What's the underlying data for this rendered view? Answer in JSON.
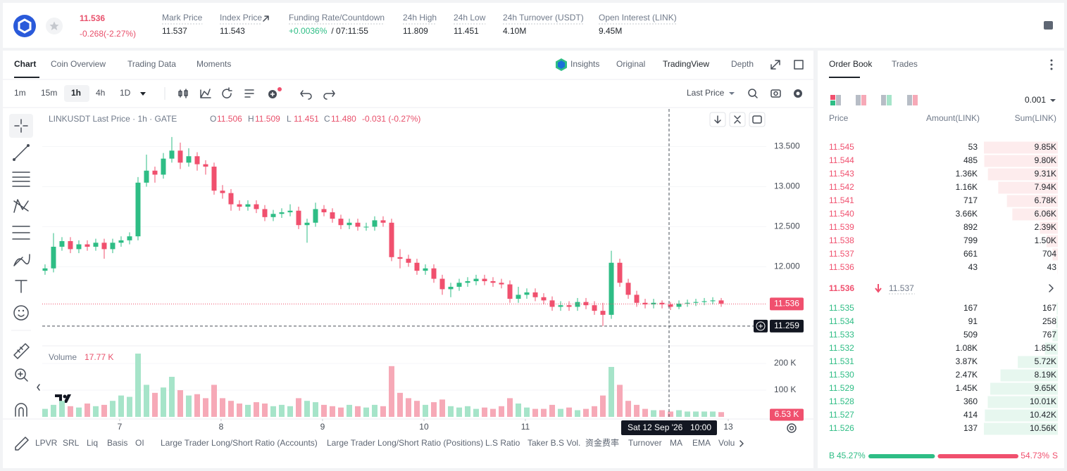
{
  "header": {
    "price": "11.536",
    "change": "-0.268(-2.27%)",
    "stats": [
      {
        "label": "Mark Price",
        "value": "11.537"
      },
      {
        "label": "Index Price",
        "value": "11.543"
      },
      {
        "label": "Funding Rate/Countdown",
        "value": "+0.0036%",
        "extra": "/ 07:11:55"
      },
      {
        "label": "24h High",
        "value": "11.809"
      },
      {
        "label": "24h Low",
        "value": "11.451"
      },
      {
        "label": "24h Turnover (USDT)",
        "value": "4.10M"
      },
      {
        "label": "Open Interest (LINK)",
        "value": "9.45M"
      }
    ]
  },
  "tabs": [
    "Chart",
    "Coin Overview",
    "Trading Data",
    "Moments"
  ],
  "views": [
    "Insights",
    "Original",
    "TradingView",
    "Depth"
  ],
  "intervals": [
    "1m",
    "15m",
    "1h",
    "4h",
    "1D"
  ],
  "price_type": "Last Price",
  "legend": {
    "symbol": "LINKUSDT Last Price · 1h · GATE",
    "items": [
      [
        "O",
        "11.506"
      ],
      [
        "H",
        "11.509"
      ],
      [
        "L",
        "11.451"
      ],
      [
        "C",
        "11.480"
      ]
    ],
    "change": "-0.031 (-0.27%)"
  },
  "chart_data": {
    "type": "candlestick",
    "open": [
      11.95,
      11.98,
      12.25,
      12.32,
      12.22,
      12.28,
      12.25,
      12.3,
      12.22,
      12.3,
      12.33,
      12.38,
      13.05,
      13.2,
      13.15,
      13.35,
      13.45,
      13.3,
      13.38,
      13.28,
      13.25,
      12.95,
      12.92,
      12.78,
      12.75,
      12.78,
      12.72,
      12.62,
      12.66,
      12.68,
      12.7,
      12.52,
      12.55,
      12.72,
      12.68,
      12.6,
      12.52,
      12.55,
      12.5,
      12.5,
      12.58,
      12.55,
      12.12,
      12.1,
      12.05,
      11.95,
      11.98,
      11.85,
      11.72,
      11.75,
      11.8,
      11.82,
      11.85,
      11.82,
      11.8,
      11.78,
      11.6,
      11.65,
      11.68,
      11.62,
      11.58,
      11.5,
      11.52,
      11.5,
      11.56,
      11.52,
      11.45,
      11.4,
      12.05,
      11.8,
      11.65,
      11.55,
      11.53,
      11.55,
      11.53,
      11.5,
      11.54,
      11.55,
      11.56,
      11.57,
      11.58
    ],
    "high": [
      12.03,
      12.42,
      12.37,
      12.37,
      12.33,
      12.33,
      12.35,
      12.35,
      12.35,
      12.38,
      12.43,
      13.12,
      13.4,
      13.25,
      13.42,
      13.62,
      13.55,
      13.48,
      13.43,
      13.33,
      13.3,
      13.02,
      12.97,
      12.83,
      12.83,
      12.83,
      12.77,
      12.71,
      12.73,
      12.78,
      12.75,
      12.6,
      12.8,
      12.77,
      12.73,
      12.65,
      12.6,
      12.6,
      12.55,
      12.63,
      12.63,
      12.6,
      12.22,
      12.15,
      12.1,
      12.03,
      12.03,
      11.9,
      11.8,
      11.85,
      11.87,
      11.9,
      11.9,
      11.87,
      11.85,
      11.83,
      11.75,
      11.73,
      11.73,
      11.67,
      11.63,
      11.57,
      11.57,
      11.61,
      11.61,
      11.57,
      11.55,
      12.2,
      12.1,
      11.85,
      11.7,
      11.6,
      11.6,
      11.58,
      11.56,
      11.58,
      11.59,
      11.6,
      11.61,
      11.62,
      11.61
    ],
    "low": [
      11.9,
      11.93,
      12.2,
      12.17,
      12.17,
      12.2,
      12.2,
      12.1,
      12.17,
      12.25,
      12.28,
      12.33,
      13.0,
      13.05,
      13.1,
      13.3,
      13.22,
      13.25,
      13.2,
      13.15,
      12.9,
      12.85,
      12.7,
      12.7,
      12.7,
      12.67,
      12.57,
      12.57,
      12.61,
      12.63,
      12.47,
      12.3,
      12.5,
      12.63,
      12.55,
      12.47,
      12.47,
      12.45,
      12.45,
      12.45,
      12.5,
      12.07,
      11.98,
      12.0,
      11.9,
      11.9,
      11.8,
      11.65,
      11.62,
      11.7,
      11.75,
      11.77,
      11.77,
      11.75,
      11.73,
      11.55,
      11.55,
      11.6,
      11.57,
      11.53,
      11.45,
      11.45,
      11.45,
      11.45,
      11.47,
      11.4,
      11.26,
      11.35,
      11.75,
      11.6,
      11.5,
      11.48,
      11.48,
      11.48,
      11.46,
      11.47,
      11.5,
      11.51,
      11.52,
      11.53,
      11.5
    ],
    "close": [
      11.98,
      12.25,
      12.32,
      12.22,
      12.28,
      12.25,
      12.3,
      12.22,
      12.3,
      12.33,
      12.38,
      13.05,
      13.2,
      13.15,
      13.35,
      13.45,
      13.3,
      13.38,
      13.28,
      13.25,
      12.95,
      12.92,
      12.78,
      12.75,
      12.78,
      12.72,
      12.62,
      12.66,
      12.68,
      12.7,
      12.52,
      12.55,
      12.72,
      12.68,
      12.6,
      12.52,
      12.55,
      12.5,
      12.5,
      12.58,
      12.55,
      12.12,
      12.1,
      12.05,
      11.95,
      11.98,
      11.85,
      11.72,
      11.75,
      11.8,
      11.82,
      11.85,
      11.82,
      11.8,
      11.78,
      11.6,
      11.65,
      11.68,
      11.62,
      11.58,
      11.5,
      11.52,
      11.5,
      11.56,
      11.52,
      11.45,
      11.4,
      12.05,
      11.8,
      11.65,
      11.55,
      11.53,
      11.55,
      11.53,
      11.5,
      11.54,
      11.55,
      11.56,
      11.57,
      11.58,
      11.54
    ],
    "up_color": "#2ebd85",
    "down_color": "#f0506e",
    "volume_up_color": "#a6e4c9",
    "volume_down_color": "#f6a9b7",
    "xlim": [
      -0.33,
      85.33
    ],
    "xticks": [
      {
        "value": 8.83,
        "label": "7"
      },
      {
        "value": 20.83,
        "label": "8"
      },
      {
        "value": 32.83,
        "label": "9"
      },
      {
        "value": 44.83,
        "label": "10"
      },
      {
        "value": 56.83,
        "label": "11"
      },
      {
        "value": 80.83,
        "label": "13"
      }
    ],
    "ylim": [
      11.03,
      13.97
    ],
    "yticks": [
      {
        "value": 13.5,
        "label": "13.500"
      },
      {
        "value": 13.0,
        "label": "13.000"
      },
      {
        "value": 12.5,
        "label": "12.500"
      },
      {
        "value": 12.0,
        "label": "12.000"
      }
    ],
    "last_price": 11.536,
    "crosshair": {
      "value": 11.259,
      "x": 73.83,
      "x_label": "Sat 12 Sep '26",
      "time": "10:00"
    },
    "volume": {
      "title": "Volume",
      "value_label": "17.77 K",
      "values": [
        30,
        45,
        60,
        40,
        35,
        50,
        40,
        45,
        60,
        80,
        75,
        237,
        120,
        90,
        110,
        150,
        100,
        80,
        85,
        70,
        120,
        70,
        60,
        50,
        45,
        55,
        50,
        40,
        45,
        40,
        70,
        60,
        55,
        45,
        40,
        35,
        45,
        40,
        35,
        45,
        40,
        190,
        90,
        70,
        60,
        45,
        55,
        65,
        40,
        35,
        40,
        30,
        35,
        30,
        40,
        70,
        50,
        35,
        30,
        30,
        45,
        30,
        35,
        25,
        30,
        40,
        80,
        187,
        120,
        60,
        45,
        30,
        25,
        25,
        20,
        25,
        20,
        20,
        20,
        20,
        17.77
      ],
      "ylim": [
        0,
        258
      ],
      "yticks": [
        {
          "value": 200,
          "label": "200 K"
        },
        {
          "value": 100,
          "label": "100 K"
        }
      ],
      "current": {
        "value": 6.53,
        "label": "6.53 K"
      }
    }
  },
  "indicators": [
    "LPVR",
    "SRL",
    "Liq",
    "Basis",
    "OI",
    "Large Trader Long/Short Ratio (Accounts)",
    "Large Trader Long/Short Ratio (Positions)",
    "L.S Ratio",
    "Taker B.S Vol.",
    "资金费率",
    "Turnover",
    "MA",
    "EMA",
    "Volu"
  ],
  "order_book": {
    "tabs": [
      "Order Book",
      "Trades"
    ],
    "precision": "0.001",
    "columns": [
      "Price",
      "Amount(LINK)",
      "Sum(LINK)"
    ],
    "asks": [
      {
        "price": "11.545",
        "amount": "53",
        "sum": {
          "value": 9850,
          "label": "9.85K"
        }
      },
      {
        "price": "11.544",
        "amount": "485",
        "sum": {
          "value": 9800,
          "label": "9.80K"
        }
      },
      {
        "price": "11.543",
        "amount": "1.36K",
        "sum": {
          "value": 9310,
          "label": "9.31K"
        }
      },
      {
        "price": "11.542",
        "amount": "1.16K",
        "sum": {
          "value": 7940,
          "label": "7.94K"
        }
      },
      {
        "price": "11.541",
        "amount": "717",
        "sum": {
          "value": 6780,
          "label": "6.78K"
        }
      },
      {
        "price": "11.540",
        "amount": "3.66K",
        "sum": {
          "value": 6060,
          "label": "6.06K"
        }
      },
      {
        "price": "11.539",
        "amount": "892",
        "sum": {
          "value": 2390,
          "label": "2.39K"
        }
      },
      {
        "price": "11.538",
        "amount": "799",
        "sum": {
          "value": 1500,
          "label": "1.50K"
        }
      },
      {
        "price": "11.537",
        "amount": "661",
        "sum": 704
      },
      {
        "price": "11.536",
        "amount": "43",
        "sum": 43
      }
    ],
    "last": "11.536",
    "mark": "11.537",
    "bids": [
      {
        "price": "11.535",
        "amount": "167",
        "sum": 167
      },
      {
        "price": "11.534",
        "amount": "91",
        "sum": 258
      },
      {
        "price": "11.533",
        "amount": "509",
        "sum": 767
      },
      {
        "price": "11.532",
        "amount": "1.08K",
        "sum": {
          "value": 1850,
          "label": "1.85K"
        }
      },
      {
        "price": "11.531",
        "amount": "3.87K",
        "sum": {
          "value": 5720,
          "label": "5.72K"
        }
      },
      {
        "price": "11.530",
        "amount": "2.47K",
        "sum": {
          "value": 8190,
          "label": "8.19K"
        }
      },
      {
        "price": "11.529",
        "amount": "1.45K",
        "sum": {
          "value": 9650,
          "label": "9.65K"
        }
      },
      {
        "price": "11.528",
        "amount": "360",
        "sum": {
          "value": 10010,
          "label": "10.01K"
        }
      },
      {
        "price": "11.527",
        "amount": "414",
        "sum": {
          "value": 10420,
          "label": "10.42K"
        }
      },
      {
        "price": "11.526",
        "amount": "137",
        "sum": {
          "value": 10560,
          "label": "10.56K"
        }
      }
    ],
    "ratio": {
      "b": "B",
      "buy": {
        "value": 45.27,
        "label": "45.27%"
      },
      "sell": {
        "value": 54.73,
        "label": "54.73%"
      },
      "s": "S"
    }
  }
}
